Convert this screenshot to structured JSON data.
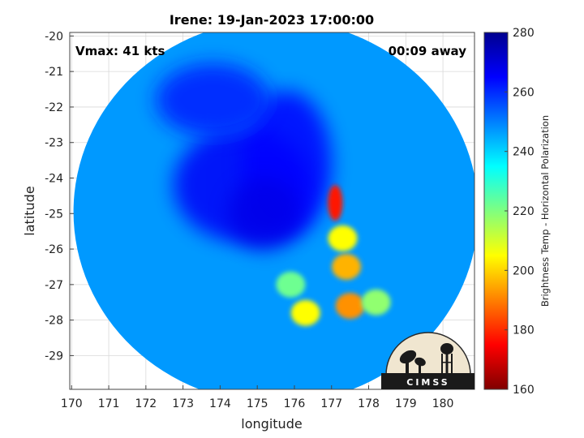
{
  "chart_data": {
    "type": "heatmap",
    "title": "Irene: 19-Jan-2023 17:00:00",
    "xlabel": "longitude",
    "ylabel": "latitude",
    "xlim": [
      169.95,
      180.85
    ],
    "ylim": [
      -29.95,
      -19.9
    ],
    "x_ticks": [
      "170",
      "171",
      "172",
      "173",
      "174",
      "175",
      "176",
      "177",
      "178",
      "179",
      "180"
    ],
    "y_ticks": [
      "-20",
      "-21",
      "-22",
      "-23",
      "-24",
      "-25",
      "-26",
      "-27",
      "-28",
      "-29"
    ],
    "grid": true,
    "annotations": {
      "vmax": "Vmax: 41 kts",
      "away": "00:09 away"
    },
    "colorbar": {
      "label": "Brightness Temp - Horizontal Polarization",
      "min": 160,
      "max": 280,
      "ticks": [
        "160",
        "180",
        "200",
        "220",
        "240",
        "260",
        "280"
      ],
      "colormap": "jet"
    },
    "swath": {
      "center": [
        175.5,
        -24.95
      ],
      "radius_lon": 5.45,
      "radius_lat": 5.4
    },
    "features": [
      {
        "kind": "warm-background",
        "value": 247
      },
      {
        "kind": "dense-region",
        "lon": 174.6,
        "lat": -24.2,
        "value": 266
      },
      {
        "kind": "cloud-band",
        "lon": 175.8,
        "lat": -23.6,
        "value": 265
      },
      {
        "kind": "north-clouds",
        "lon": 173.8,
        "lat": -21.8,
        "value": 262
      },
      {
        "kind": "eye-region",
        "lon": 175.2,
        "lat": -25.0,
        "value": 268
      },
      {
        "kind": "rainband-core",
        "lon": 177.1,
        "lat": -24.7,
        "value": 178
      },
      {
        "kind": "rainband",
        "lon": 177.3,
        "lat": -25.7,
        "value": 205
      },
      {
        "kind": "rainband",
        "lon": 177.4,
        "lat": -26.5,
        "value": 196
      },
      {
        "kind": "rainband",
        "lon": 177.5,
        "lat": -27.6,
        "value": 192
      },
      {
        "kind": "rainband",
        "lon": 176.3,
        "lat": -27.8,
        "value": 205
      },
      {
        "kind": "rainband",
        "lon": 175.9,
        "lat": -27.0,
        "value": 222
      },
      {
        "kind": "rainband",
        "lon": 178.2,
        "lat": -27.5,
        "value": 218
      }
    ]
  },
  "logo": {
    "text": "CIMSS"
  }
}
